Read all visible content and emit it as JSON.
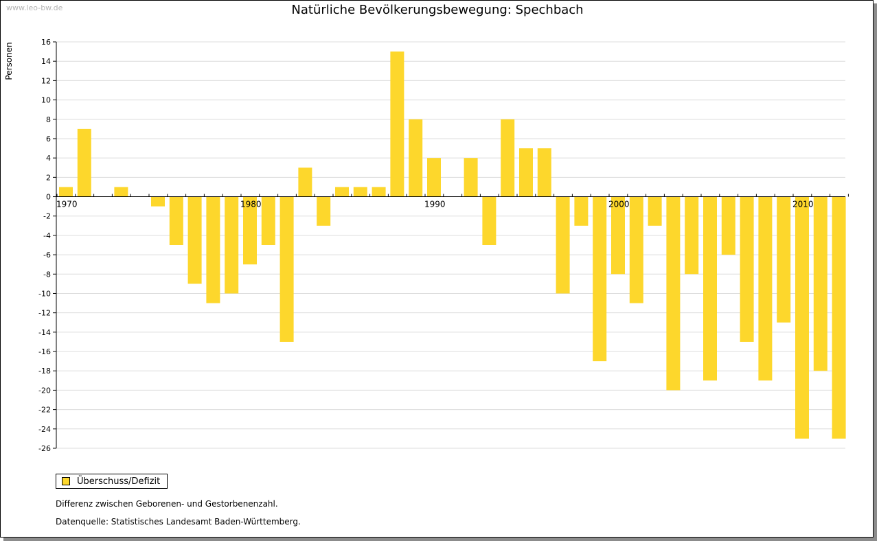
{
  "watermark": "www.leo-bw.de",
  "chart_data": {
    "type": "bar",
    "title": "Natürliche Bevölkerungsbewegung: Spechbach",
    "ylabel": "Personen",
    "xlabel": "",
    "ylim": [
      -26,
      16
    ],
    "ytick_step": 2,
    "x_labels": [
      "1970",
      "1980",
      "1990",
      "2000",
      "2010"
    ],
    "categories": [
      1970,
      1971,
      1972,
      1973,
      1974,
      1975,
      1976,
      1977,
      1978,
      1979,
      1980,
      1981,
      1982,
      1983,
      1984,
      1985,
      1986,
      1987,
      1988,
      1989,
      1990,
      1991,
      1992,
      1993,
      1994,
      1995,
      1996,
      1997,
      1998,
      1999,
      2000,
      2001,
      2002,
      2003,
      2004,
      2005,
      2006,
      2007,
      2008,
      2009,
      2010,
      2011,
      2012
    ],
    "series": [
      {
        "name": "Überschuss/Defizit",
        "color": "#fdd72c",
        "values": [
          1,
          7,
          0,
          1,
          0,
          -1,
          -5,
          -9,
          -11,
          -10,
          -7,
          -5,
          -15,
          3,
          -3,
          1,
          1,
          1,
          15,
          8,
          4,
          0,
          4,
          -5,
          8,
          5,
          5,
          -10,
          -3,
          -17,
          -8,
          -11,
          -3,
          -20,
          -8,
          -19,
          -6,
          -15,
          -19,
          -13,
          -25,
          -18,
          -25
        ]
      }
    ],
    "grid": true,
    "legend": "bottom-left"
  },
  "notes": [
    "Differenz zwischen Geborenen- und Gestorbenenzahl.",
    "Datenquelle: Statistisches Landesamt Baden-Württemberg."
  ]
}
